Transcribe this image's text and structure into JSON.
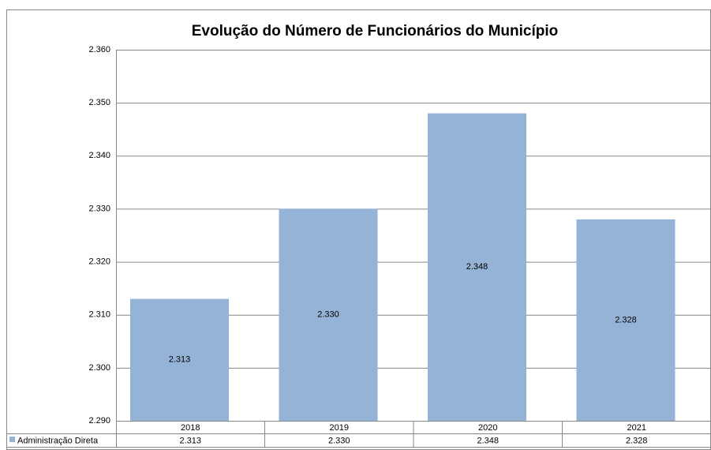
{
  "chart_data": {
    "type": "bar",
    "title": "Evolução do Número de Funcionários do Município",
    "categories": [
      "2018",
      "2019",
      "2020",
      "2021"
    ],
    "series": [
      {
        "name": "Administração Direta",
        "color": "#95b3d7",
        "values": [
          2313,
          2330,
          2348,
          2328
        ],
        "value_labels": [
          "2.313",
          "2.330",
          "2.348",
          "2.328"
        ]
      }
    ],
    "ylim": [
      2290,
      2360
    ],
    "yticks": [
      {
        "value": 2290,
        "label": "2.290"
      },
      {
        "value": 2300,
        "label": "2.300"
      },
      {
        "value": 2310,
        "label": "2.310"
      },
      {
        "value": 2320,
        "label": "2.320"
      },
      {
        "value": 2330,
        "label": "2.330"
      },
      {
        "value": 2340,
        "label": "2.340"
      },
      {
        "value": 2350,
        "label": "2.350"
      },
      {
        "value": 2360,
        "label": "2.360"
      }
    ],
    "grid": true
  }
}
